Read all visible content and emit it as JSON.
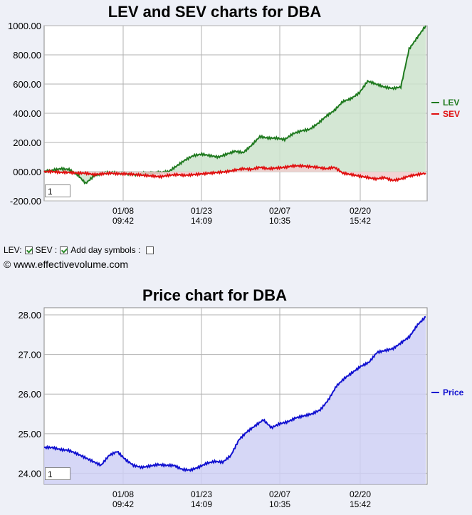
{
  "chart_data": [
    {
      "type": "area",
      "title": "LEV and SEV charts for DBA",
      "x_tick_labels": [
        [
          "01/08",
          "09:42"
        ],
        [
          "01/23",
          "14:09"
        ],
        [
          "02/07",
          "10:35"
        ],
        [
          "02/20",
          "15:42"
        ]
      ],
      "y_tick_labels": [
        "1000.00",
        "800.00",
        "600.00",
        "400.00",
        "200.00",
        "000.00",
        "-200.00"
      ],
      "ylim": [
        -200,
        1000
      ],
      "series": [
        {
          "name": "LEV",
          "color": "#1f7a1f",
          "fill": "#cde3cd",
          "values": [
            0,
            10,
            20,
            15,
            -20,
            -80,
            -30,
            -10,
            -5,
            -10,
            -15,
            -20,
            -10,
            -10,
            -5,
            0,
            40,
            80,
            110,
            120,
            110,
            100,
            120,
            140,
            130,
            180,
            240,
            230,
            230,
            220,
            260,
            280,
            290,
            330,
            380,
            420,
            480,
            500,
            540,
            620,
            600,
            580,
            570,
            580,
            840,
            920,
            1000
          ]
        },
        {
          "name": "SEV",
          "color": "#e01010",
          "fill": "#f0cccc",
          "values": [
            0,
            0,
            -5,
            -5,
            -10,
            -10,
            -20,
            -15,
            -10,
            -15,
            -15,
            -20,
            -25,
            -30,
            -35,
            -25,
            -20,
            -25,
            -20,
            -15,
            -10,
            -5,
            0,
            10,
            20,
            15,
            30,
            20,
            25,
            30,
            40,
            40,
            35,
            30,
            20,
            30,
            -10,
            -20,
            -30,
            -40,
            -50,
            -40,
            -60,
            -50,
            -30,
            -20,
            -10
          ]
        }
      ],
      "zoom_value": "1"
    },
    {
      "type": "area",
      "title": "Price chart for DBA",
      "x_tick_labels": [
        [
          "01/08",
          "09:42"
        ],
        [
          "01/23",
          "14:09"
        ],
        [
          "02/07",
          "10:35"
        ],
        [
          "02/20",
          "15:42"
        ]
      ],
      "y_tick_labels": [
        "28.00",
        "27.00",
        "26.00",
        "25.00",
        "24.00"
      ],
      "ylim": [
        23.72,
        28.18
      ],
      "series": [
        {
          "name": "Price",
          "color": "#1010d0",
          "fill": "#cfd0f5",
          "values": [
            24.65,
            24.65,
            24.6,
            24.58,
            24.5,
            24.4,
            24.3,
            24.2,
            24.45,
            24.55,
            24.35,
            24.2,
            24.15,
            24.18,
            24.22,
            24.2,
            24.2,
            24.1,
            24.08,
            24.15,
            24.25,
            24.3,
            24.28,
            24.45,
            24.85,
            25.05,
            25.2,
            25.35,
            25.15,
            25.25,
            25.3,
            25.4,
            25.45,
            25.5,
            25.6,
            25.85,
            26.2,
            26.4,
            26.55,
            26.7,
            26.8,
            27.05,
            27.1,
            27.15,
            27.3,
            27.45,
            27.75,
            27.95
          ]
        }
      ],
      "zoom_value": "1"
    }
  ],
  "controls": {
    "lev_label": "LEV:",
    "sev_label": "SEV :",
    "day_symbols_label": "Add day symbols :"
  },
  "copyright": "© www.effectivevolume.com"
}
